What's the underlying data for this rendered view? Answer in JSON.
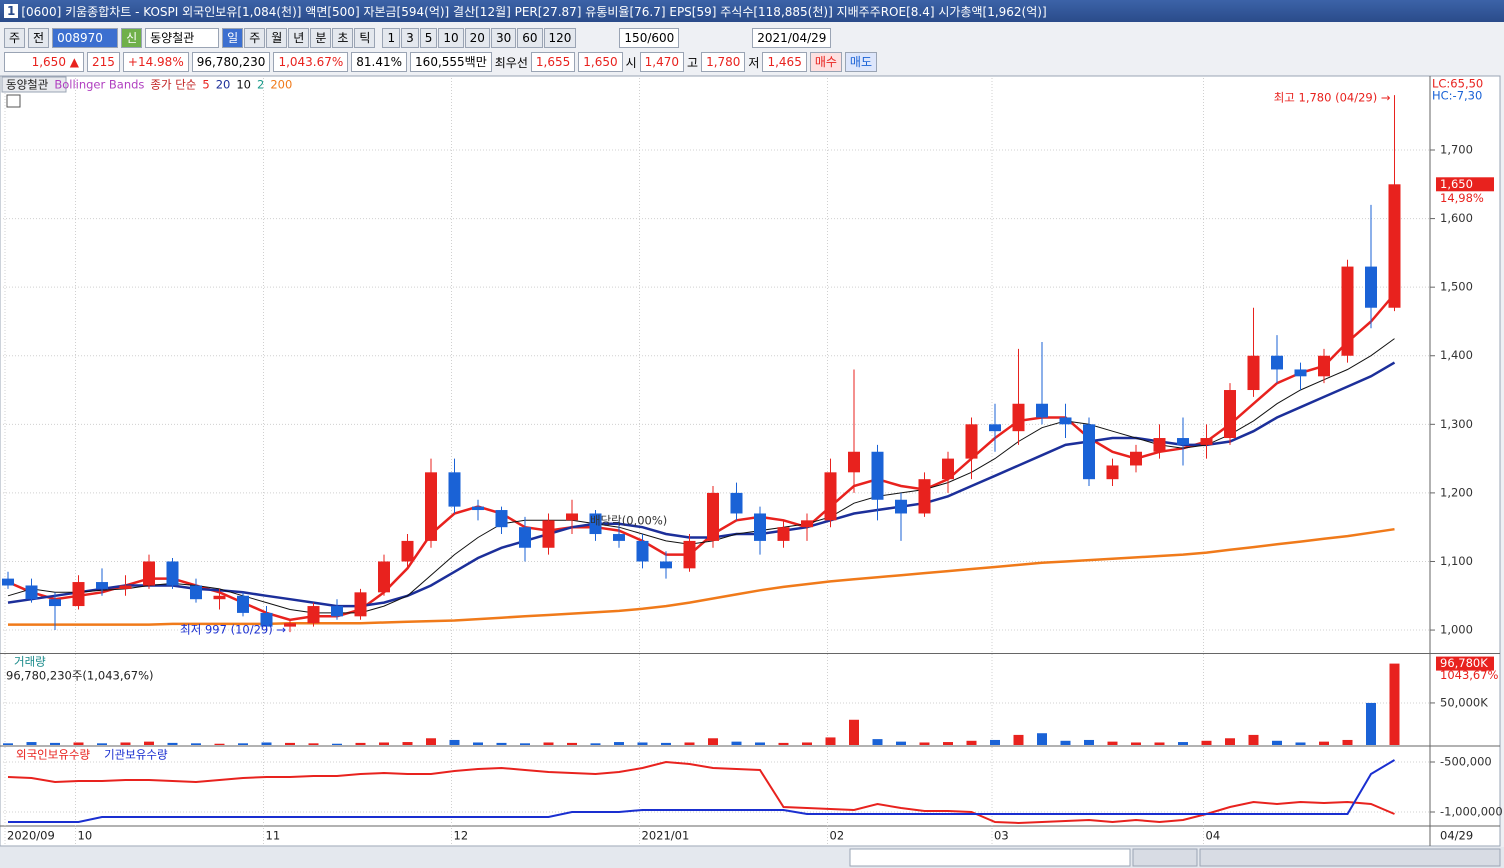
{
  "window": {
    "number": "1",
    "title": "[0600] 키움종합차트 - KOSPI 외국인보유[1,084(천)] 액면[500] 자본금[594(억)] 결산[12월] PER[27.87] 유통비율[76.7] EPS[59] 주식수[118,885(천)] 지배주주ROE[8.4] 시가총액[1,962(억)]"
  },
  "toolbar": {
    "period": "주",
    "prev": "전",
    "code": "008970",
    "badge": "신",
    "name": "동양철관",
    "intervals": [
      "일",
      "주",
      "월",
      "년",
      "분",
      "초",
      "틱"
    ],
    "minutes": [
      "1",
      "3",
      "5",
      "10",
      "20",
      "30",
      "60",
      "120"
    ],
    "count": "150/600",
    "date": "2021/04/29"
  },
  "quote": {
    "price": "1,650 ▲",
    "change": "215",
    "rate": "+14.98%",
    "volume": "96,780,230",
    "vol_rate": "1,043.67%",
    "ratio": "81.41%",
    "amount": "160,555백만",
    "best_label": "최우선",
    "best_ask": "1,655",
    "best_bid": "1,650",
    "open_label": "시",
    "open": "1,470",
    "high_label": "고",
    "high": "1,780",
    "low_label": "저",
    "low": "1,465",
    "buy": "매수",
    "sell": "매도"
  },
  "chart_data": [
    {
      "type": "candlestick",
      "title": "동양철관",
      "indicator": "Bollinger Bands",
      "ma_label": "종가 단순",
      "bollinger_k": "2",
      "bollinger_color": "#1a9a8a",
      "open": [
        1075,
        1065,
        1045,
        1035,
        1070,
        1060,
        1065,
        1100,
        1065,
        1045,
        1050,
        1025,
        1005,
        1010,
        1035,
        1020,
        1055,
        1100,
        1130,
        1230,
        1180,
        1175,
        1150,
        1120,
        1160,
        1170,
        1140,
        1130,
        1100,
        1090,
        1130,
        1200,
        1170,
        1130,
        1150,
        1160,
        1230,
        1260,
        1190,
        1170,
        1220,
        1250,
        1300,
        1290,
        1330,
        1310,
        1300,
        1220,
        1240,
        1260,
        1280,
        1270,
        1280,
        1350,
        1400,
        1380,
        1370,
        1400,
        1530,
        1470
      ],
      "high": [
        1085,
        1075,
        1055,
        1080,
        1090,
        1080,
        1110,
        1105,
        1075,
        1060,
        1055,
        1035,
        1015,
        1040,
        1045,
        1060,
        1110,
        1140,
        1250,
        1250,
        1190,
        1180,
        1165,
        1170,
        1190,
        1175,
        1160,
        1140,
        1115,
        1140,
        1210,
        1215,
        1180,
        1160,
        1170,
        1250,
        1380,
        1270,
        1200,
        1230,
        1260,
        1310,
        1330,
        1410,
        1420,
        1330,
        1310,
        1250,
        1270,
        1300,
        1310,
        1300,
        1360,
        1470,
        1430,
        1390,
        1410,
        1540,
        1620,
        1780
      ],
      "low": [
        1060,
        1040,
        1000,
        1030,
        1050,
        1050,
        1060,
        1060,
        1040,
        1030,
        1020,
        998,
        997,
        1005,
        1015,
        1015,
        1050,
        1090,
        1120,
        1170,
        1160,
        1140,
        1100,
        1110,
        1140,
        1130,
        1120,
        1090,
        1075,
        1085,
        1120,
        1160,
        1110,
        1120,
        1130,
        1150,
        1200,
        1160,
        1130,
        1165,
        1200,
        1220,
        1260,
        1270,
        1300,
        1280,
        1210,
        1210,
        1230,
        1250,
        1240,
        1250,
        1270,
        1340,
        1360,
        1350,
        1360,
        1390,
        1440,
        1465
      ],
      "close": [
        1065,
        1045,
        1035,
        1070,
        1060,
        1065,
        1100,
        1065,
        1045,
        1050,
        1025,
        1005,
        1010,
        1035,
        1020,
        1055,
        1100,
        1130,
        1230,
        1180,
        1175,
        1150,
        1120,
        1160,
        1170,
        1140,
        1130,
        1100,
        1090,
        1130,
        1200,
        1170,
        1130,
        1150,
        1160,
        1230,
        1260,
        1190,
        1170,
        1220,
        1250,
        1300,
        1290,
        1330,
        1310,
        1300,
        1220,
        1240,
        1260,
        1280,
        1270,
        1280,
        1350,
        1400,
        1380,
        1370,
        1400,
        1530,
        1470,
        1650
      ],
      "up_color": "#e8221e",
      "down_color": "#1a62d6",
      "series": [
        {
          "name": "5",
          "color": "#e8221e",
          "values": [
            1070,
            1055,
            1045,
            1050,
            1055,
            1065,
            1075,
            1075,
            1065,
            1055,
            1040,
            1025,
            1015,
            1020,
            1020,
            1030,
            1055,
            1090,
            1140,
            1170,
            1180,
            1170,
            1150,
            1145,
            1150,
            1150,
            1145,
            1130,
            1110,
            1110,
            1140,
            1160,
            1165,
            1160,
            1150,
            1180,
            1210,
            1220,
            1210,
            1205,
            1220,
            1250,
            1280,
            1305,
            1310,
            1310,
            1280,
            1260,
            1250,
            1260,
            1265,
            1275,
            1300,
            1330,
            1360,
            1375,
            1385,
            1420,
            1450,
            1490
          ]
        },
        {
          "name": "20",
          "color": "#1c2f9a",
          "values": [
            1040,
            1045,
            1050,
            1055,
            1060,
            1065,
            1065,
            1065,
            1060,
            1058,
            1055,
            1050,
            1045,
            1040,
            1035,
            1035,
            1040,
            1050,
            1065,
            1085,
            1105,
            1120,
            1130,
            1140,
            1150,
            1155,
            1155,
            1150,
            1140,
            1135,
            1135,
            1140,
            1140,
            1145,
            1150,
            1160,
            1170,
            1175,
            1180,
            1185,
            1195,
            1210,
            1225,
            1240,
            1255,
            1270,
            1275,
            1280,
            1280,
            1275,
            1270,
            1270,
            1275,
            1290,
            1310,
            1325,
            1340,
            1355,
            1370,
            1390
          ]
        },
        {
          "name": "10",
          "color": "#111111",
          "values": [
            1050,
            1060,
            1055,
            1055,
            1058,
            1060,
            1065,
            1068,
            1065,
            1060,
            1050,
            1040,
            1030,
            1025,
            1025,
            1025,
            1035,
            1050,
            1080,
            1110,
            1135,
            1155,
            1160,
            1160,
            1160,
            1155,
            1150,
            1140,
            1130,
            1125,
            1130,
            1140,
            1145,
            1150,
            1155,
            1165,
            1185,
            1195,
            1200,
            1205,
            1215,
            1230,
            1250,
            1275,
            1295,
            1305,
            1300,
            1290,
            1280,
            1270,
            1265,
            1270,
            1285,
            1305,
            1330,
            1350,
            1365,
            1380,
            1400,
            1425
          ]
        },
        {
          "name": "200",
          "color": "#f07a1a",
          "values": [
            1008,
            1008,
            1008,
            1008,
            1008,
            1008,
            1008,
            1009,
            1009,
            1009,
            1009,
            1009,
            1010,
            1010,
            1010,
            1010,
            1011,
            1012,
            1013,
            1014,
            1016,
            1018,
            1020,
            1022,
            1024,
            1026,
            1028,
            1031,
            1035,
            1040,
            1046,
            1052,
            1058,
            1063,
            1067,
            1071,
            1074,
            1077,
            1080,
            1083,
            1086,
            1089,
            1092,
            1095,
            1098,
            1100,
            1102,
            1104,
            1106,
            1108,
            1110,
            1113,
            1117,
            1121,
            1125,
            1129,
            1133,
            1137,
            1142,
            1147
          ]
        }
      ],
      "ylim": [
        968,
        1805
      ],
      "yticks": [
        {
          "value": 1000,
          "label": "1,000"
        },
        {
          "value": 1100,
          "label": "1,100"
        },
        {
          "value": 1200,
          "label": "1,200"
        },
        {
          "value": 1300,
          "label": "1,300"
        },
        {
          "value": 1400,
          "label": "1,400"
        },
        {
          "value": 1500,
          "label": "1,500"
        },
        {
          "value": 1600,
          "label": "1,600"
        },
        {
          "value": 1700,
          "label": "1,700"
        }
      ],
      "xticks": [
        {
          "value": 0,
          "label": "2020/09"
        },
        {
          "value": 3,
          "label": "10"
        },
        {
          "value": 11,
          "label": "11"
        },
        {
          "value": 19,
          "label": "12"
        },
        {
          "value": 27,
          "label": "2021/01"
        },
        {
          "value": 35,
          "label": "02"
        },
        {
          "value": 42,
          "label": "03"
        },
        {
          "value": 51,
          "label": "04"
        }
      ],
      "x_end_label": "04/29",
      "lc_label": "LC:65,50",
      "hc_label": "HC:-7,30",
      "current_label": "1,650",
      "current_rate": "14,98%",
      "annotations": [
        {
          "text": "최고 1,780 (04/29) →",
          "color": "#e8221e"
        },
        {
          "text": "최저 997 (10/29) →",
          "color": "#1a2fd0"
        },
        {
          "text": "배당락(0,00%)",
          "color": "#333333"
        }
      ],
      "grid": true
    },
    {
      "type": "bar",
      "title": "거래량",
      "subtitle": "96,780,230주(1,043,67%)",
      "values": [
        2000,
        3500,
        2500,
        3000,
        2000,
        3000,
        4000,
        2500,
        2000,
        1500,
        2000,
        3000,
        2500,
        2000,
        1500,
        2500,
        3000,
        3500,
        8000,
        6000,
        3000,
        2500,
        2000,
        3000,
        2500,
        2000,
        3500,
        3000,
        2500,
        3000,
        8000,
        4000,
        3000,
        2500,
        3000,
        9000,
        30000,
        7000,
        4000,
        3000,
        3500,
        5000,
        6000,
        12000,
        14000,
        5000,
        6000,
        4000,
        3000,
        3000,
        3500,
        5000,
        8000,
        12000,
        5000,
        3000,
        4000,
        6000,
        50000,
        96780
      ],
      "ylim": [
        0,
        107000
      ],
      "yticks": [
        {
          "value": 50000,
          "label": "50,000K"
        }
      ],
      "current_label": "96,780K",
      "current_rate": "1043,67%"
    },
    {
      "type": "line",
      "series": [
        {
          "name": "외국인보유수량",
          "color": "#e8221e",
          "values": [
            -650000,
            -660000,
            -700000,
            -690000,
            -690000,
            -680000,
            -680000,
            -690000,
            -700000,
            -680000,
            -660000,
            -650000,
            -650000,
            -640000,
            -640000,
            -620000,
            -610000,
            -620000,
            -620000,
            -590000,
            -570000,
            -560000,
            -580000,
            -600000,
            -610000,
            -620000,
            -600000,
            -560000,
            -500000,
            -520000,
            -560000,
            -570000,
            -580000,
            -950000,
            -960000,
            -970000,
            -980000,
            -920000,
            -960000,
            -990000,
            -990000,
            -1000000,
            -1100000,
            -1110000,
            -1100000,
            -1090000,
            -1080000,
            -1100000,
            -1080000,
            -1100000,
            -1080000,
            -1020000,
            -950000,
            -900000,
            -920000,
            -900000,
            -910000,
            -900000,
            -920000,
            -1020000
          ]
        },
        {
          "name": "기관보유수량",
          "color": "#1a2fd0",
          "values": [
            -1100000,
            -1100000,
            -1100000,
            -1100000,
            -1050000,
            -1050000,
            -1050000,
            -1050000,
            -1050000,
            -1050000,
            -1050000,
            -1050000,
            -1050000,
            -1050000,
            -1050000,
            -1050000,
            -1050000,
            -1050000,
            -1050000,
            -1050000,
            -1050000,
            -1050000,
            -1050000,
            -1050000,
            -1000000,
            -1000000,
            -1000000,
            -980000,
            -980000,
            -980000,
            -980000,
            -980000,
            -980000,
            -980000,
            -1020000,
            -1020000,
            -1020000,
            -1020000,
            -1020000,
            -1020000,
            -1020000,
            -1020000,
            -1020000,
            -1020000,
            -1020000,
            -1020000,
            -1020000,
            -1020000,
            -1020000,
            -1020000,
            -1020000,
            -1020000,
            -1020000,
            -1020000,
            -1020000,
            -1020000,
            -1020000,
            -1020000,
            -620000,
            -480000
          ]
        }
      ],
      "ylim": [
        -1130000,
        -350000
      ],
      "yticks": [
        {
          "value": -500000,
          "label": "-500,000"
        },
        {
          "value": -1000000,
          "label": "-1,000,000"
        }
      ]
    }
  ]
}
